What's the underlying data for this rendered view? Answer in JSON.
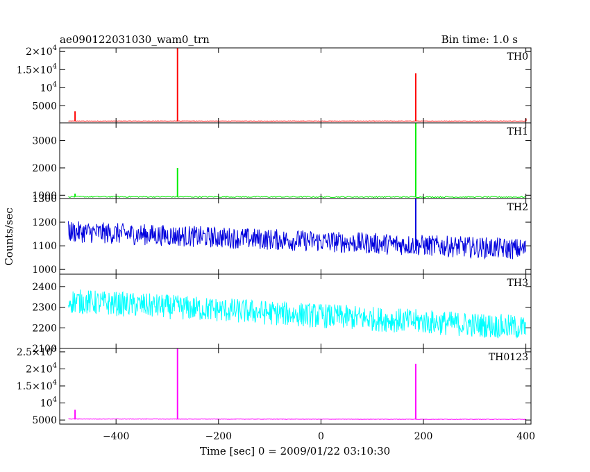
{
  "chart_data": {
    "type": "line",
    "title": "ae090122031030_wam0_trn",
    "bin_time_label": "Bin time: 1.0 s",
    "xlabel": "Time [sec] 0 = 2009/01/22 03:10:30",
    "ylabel": "Counts/sec",
    "xlim": [
      -510,
      410
    ],
    "x_ticks": [
      -400,
      -200,
      0,
      200,
      400
    ],
    "x_tick_labels": [
      "−400",
      "−200",
      "0",
      "200",
      "400"
    ],
    "panels": [
      {
        "name": "TH0",
        "color": "#ff0000",
        "ylim": [
          300,
          21000
        ],
        "y_ticks": [
          5000,
          10000,
          15000,
          20000
        ],
        "y_tick_labels": [
          [
            "5000",
            ""
          ],
          [
            "10",
            "4"
          ],
          [
            "1.5×10",
            "4"
          ],
          [
            "2×10",
            "4"
          ]
        ],
        "noise": {
          "start": 800,
          "end": 800,
          "amp": 60
        },
        "spikes": [
          [
            -480,
            3500
          ],
          [
            -280,
            21000
          ],
          [
            185,
            14000
          ],
          [
            400,
            1500
          ]
        ]
      },
      {
        "name": "TH1",
        "color": "#00ee00",
        "ylim": [
          880,
          3650
        ],
        "y_ticks": [
          1000,
          2000,
          3000
        ],
        "y_tick_labels": [
          [
            "1000",
            ""
          ],
          [
            "2000",
            ""
          ],
          [
            "3000",
            ""
          ]
        ],
        "noise": {
          "start": 945,
          "end": 935,
          "amp": 22
        },
        "spikes": [
          [
            -480,
            1060
          ],
          [
            -280,
            2000
          ],
          [
            185,
            3650
          ]
        ]
      },
      {
        "name": "TH2",
        "color": "#0000dd",
        "ylim": [
          980,
          1300
        ],
        "y_ticks": [
          1000,
          1100,
          1200,
          1300
        ],
        "y_tick_labels": [
          [
            "1000",
            ""
          ],
          [
            "1100",
            ""
          ],
          [
            "1200",
            ""
          ],
          [
            "1300",
            ""
          ]
        ],
        "noise": {
          "start": 1160,
          "end": 1085,
          "amp": 45
        },
        "spikes": [
          [
            185,
            1300
          ]
        ]
      },
      {
        "name": "TH3",
        "color": "#00ffff",
        "ylim": [
          2100,
          2460
        ],
        "y_ticks": [
          2100,
          2200,
          2300,
          2400
        ],
        "y_tick_labels": [
          [
            "2100",
            ""
          ],
          [
            "2200",
            ""
          ],
          [
            "2300",
            ""
          ],
          [
            "2400",
            ""
          ]
        ],
        "noise": {
          "start": 2330,
          "end": 2200,
          "amp": 60
        },
        "spikes": []
      },
      {
        "name": "TH0123",
        "color": "#ff00ff",
        "ylim": [
          3800,
          26000
        ],
        "y_ticks": [
          5000,
          10000,
          15000,
          20000,
          25000
        ],
        "y_tick_labels": [
          [
            "5000",
            ""
          ],
          [
            "10",
            "4"
          ],
          [
            "1.5×10",
            "4"
          ],
          [
            "2×10",
            "4"
          ],
          [
            "2.5×10",
            "4"
          ]
        ],
        "noise": {
          "start": 5300,
          "end": 5200,
          "amp": 70
        },
        "spikes": [
          [
            -480,
            8000
          ],
          [
            -280,
            26000
          ],
          [
            185,
            21500
          ]
        ]
      }
    ]
  }
}
